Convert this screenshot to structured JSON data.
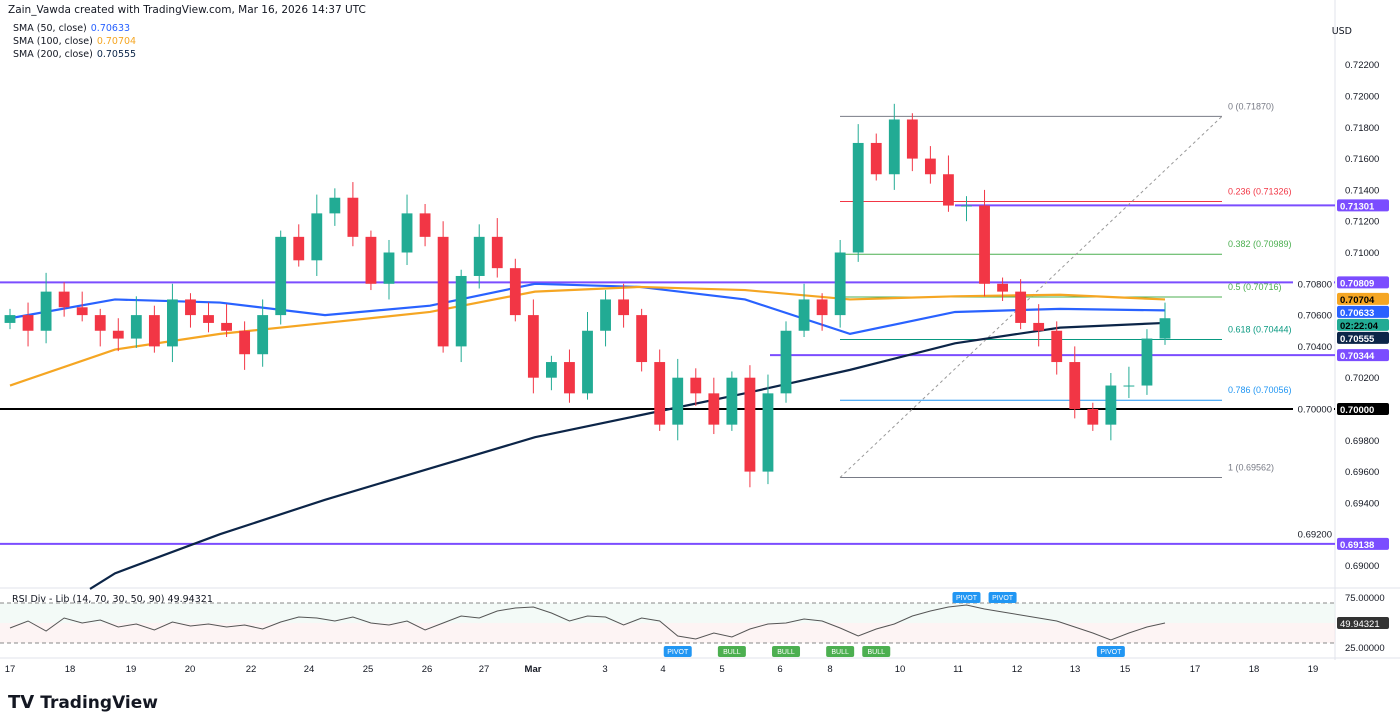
{
  "header": {
    "credit": "Zain_Vawda created with TradingView.com, Mar 16, 2026 14:37 UTC",
    "currency": "USD"
  },
  "legend": [
    {
      "label": "SMA (50, close)",
      "value": "0.70633",
      "color": "#2962ff"
    },
    {
      "label": "SMA (100, close)",
      "value": "0.70704",
      "color": "#f5a623"
    },
    {
      "label": "SMA (200, close)",
      "value": "0.70555",
      "color": "#0c2548"
    }
  ],
  "chart_data": {
    "type": "candlestick",
    "ylim": [
      0.689,
      0.7225
    ],
    "yticks": [
      "0.72200",
      "0.72000",
      "0.71800",
      "0.71600",
      "0.71400",
      "0.71200",
      "0.71000",
      "0.70800",
      "0.70600",
      "0.70400",
      "0.70200",
      "0.70000",
      "0.69800",
      "0.69600",
      "0.69400",
      "0.69200",
      "0.69000"
    ],
    "xticks": [
      "17",
      "18",
      "19",
      "20",
      "22",
      "24",
      "25",
      "26",
      "27",
      "Mar",
      "3",
      "4",
      "5",
      "6",
      "8",
      "10",
      "11",
      "12",
      "13",
      "15",
      "17",
      "18",
      "19"
    ],
    "closes": [
      0.706,
      0.705,
      0.7075,
      0.7065,
      0.706,
      0.705,
      0.7045,
      0.706,
      0.704,
      0.707,
      0.706,
      0.7055,
      0.705,
      0.7035,
      0.706,
      0.711,
      0.7095,
      0.7125,
      0.7135,
      0.711,
      0.708,
      0.71,
      0.7125,
      0.711,
      0.704,
      0.7085,
      0.711,
      0.709,
      0.706,
      0.702,
      0.703,
      0.701,
      0.705,
      0.707,
      0.706,
      0.703,
      0.699,
      0.702,
      0.701,
      0.699,
      0.702,
      0.696,
      0.701,
      0.705,
      0.707,
      0.706,
      0.71,
      0.717,
      0.715,
      0.7185,
      0.716,
      0.715,
      0.713,
      0.713,
      0.708,
      0.7075,
      0.7055,
      0.705,
      0.703,
      0.7,
      0.699,
      0.7015,
      0.7015,
      0.7045,
      0.7058
    ],
    "sma": [
      {
        "name": "SMA (50, close)",
        "color": "#2962ff",
        "values": [
          0.7058,
          0.707,
          0.7068,
          0.706,
          0.7066,
          0.708,
          0.7078,
          0.707,
          0.7048,
          0.7062,
          0.7064,
          0.7063
        ]
      },
      {
        "name": "SMA (100, close)",
        "color": "#f5a623",
        "values": [
          0.7015,
          0.7038,
          0.7048,
          0.7055,
          0.7062,
          0.7075,
          0.7078,
          0.7076,
          0.707,
          0.7072,
          0.7073,
          0.707
        ]
      },
      {
        "name": "SMA (200, close)",
        "color": "#0c2548",
        "values": [
          null,
          0.6895,
          0.692,
          0.6942,
          0.6962,
          0.6982,
          0.6996,
          0.701,
          0.7025,
          0.7042,
          0.7052,
          0.7055
        ]
      }
    ],
    "fib": [
      {
        "ratio": "0",
        "value": 0.7187,
        "label": "0 (0.71870)",
        "color": "#787b86"
      },
      {
        "ratio": "0.236",
        "value": 0.71326,
        "label": "0.236 (0.71326)",
        "color": "#f23645"
      },
      {
        "ratio": "0.382",
        "value": 0.70989,
        "label": "0.382 (0.70989)",
        "color": "#4caf50"
      },
      {
        "ratio": "0.5",
        "value": 0.70716,
        "label": "0.5 (0.70716)",
        "color": "#4caf50"
      },
      {
        "ratio": "0.618",
        "value": 0.70444,
        "label": "0.618 (0.70444)",
        "color": "#089981"
      },
      {
        "ratio": "0.786",
        "value": 0.70056,
        "label": "0.786 (0.70056)",
        "color": "#2196f3"
      },
      {
        "ratio": "1",
        "value": 0.69562,
        "label": "1 (0.69562)",
        "color": "#787b86"
      }
    ],
    "hlines": [
      {
        "value": 0.71301,
        "label": "0.71301",
        "color": "#7b4dff",
        "from": "Mar 11"
      },
      {
        "value": 0.70809,
        "label": "0.70809",
        "color": "#7b4dff"
      },
      {
        "value": 0.70344,
        "label": "0.70344",
        "color": "#7b4dff",
        "from": "Mar 6"
      },
      {
        "value": 0.7,
        "label": "0.70000",
        "color": "#000000"
      },
      {
        "value": 0.69138,
        "label": "0.69138",
        "color": "#7b4dff"
      }
    ],
    "price_tags": [
      {
        "label": "0.70704",
        "value": 0.70704,
        "color": "#f5a623",
        "text": "#000"
      },
      {
        "label": "0.70633",
        "value": 0.70633,
        "color": "#2962ff",
        "text": "#fff"
      },
      {
        "label": "02:22:04",
        "value": 0.70585,
        "color": "#22ab94",
        "text": "#000"
      },
      {
        "label": "0.70555",
        "value": 0.70555,
        "color": "#0c2548",
        "text": "#fff"
      }
    ],
    "rsi": {
      "label": "RSI Div - Lib (14, 70, 30, 50, 90)",
      "value": "49.94321",
      "ylim": [
        25,
        75
      ],
      "yticks": [
        "75.00000",
        "25.00000"
      ],
      "bands": [
        70,
        30,
        50
      ],
      "values": [
        45,
        52,
        42,
        55,
        50,
        53,
        46,
        49,
        43,
        51,
        47,
        49,
        46,
        48,
        44,
        51,
        56,
        55,
        52,
        56,
        50,
        48,
        52,
        43,
        50,
        57,
        55,
        62,
        65,
        66,
        60,
        52,
        57,
        56,
        48,
        55,
        52,
        37,
        34,
        40,
        36,
        44,
        49,
        50,
        54,
        52,
        45,
        37,
        44,
        49,
        57,
        62,
        66,
        68,
        64,
        61,
        58,
        55,
        52,
        46,
        40,
        33,
        40,
        46,
        50
      ],
      "markers": [
        {
          "label": "PIVOT",
          "pos": "bottom",
          "index": 37,
          "color": "#2196f3"
        },
        {
          "label": "BULL",
          "pos": "bottom",
          "index": 40,
          "color": "#4caf50"
        },
        {
          "label": "BULL",
          "pos": "bottom",
          "index": 43,
          "color": "#4caf50"
        },
        {
          "label": "BULL",
          "pos": "bottom",
          "index": 46,
          "color": "#4caf50"
        },
        {
          "label": "BULL",
          "pos": "bottom",
          "index": 48,
          "color": "#4caf50"
        },
        {
          "label": "PIVOT",
          "pos": "top",
          "index": 53,
          "color": "#2196f3"
        },
        {
          "label": "PIVOT",
          "pos": "top",
          "index": 55,
          "color": "#2196f3"
        },
        {
          "label": "PIVOT",
          "pos": "bottom",
          "index": 61,
          "color": "#2196f3"
        }
      ]
    },
    "colors": {
      "up": "#22ab94",
      "down": "#f23645"
    }
  },
  "footer": {
    "brand": "TradingView"
  }
}
